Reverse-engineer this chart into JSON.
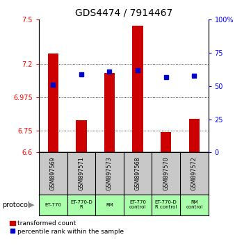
{
  "title": "GDS4474 / 7914467",
  "samples": [
    "GSM897569",
    "GSM897571",
    "GSM897573",
    "GSM897568",
    "GSM897570",
    "GSM897572"
  ],
  "red_values": [
    7.27,
    6.82,
    7.14,
    7.46,
    6.74,
    6.83
  ],
  "blue_values": [
    51,
    59,
    61,
    62,
    57,
    58
  ],
  "ylim_left": [
    6.6,
    7.5
  ],
  "ylim_right": [
    0,
    100
  ],
  "yticks_left": [
    6.6,
    6.75,
    6.975,
    7.2,
    7.5
  ],
  "yticks_right": [
    0,
    25,
    50,
    75,
    100
  ],
  "ytick_labels_left": [
    "6.6",
    "6.75",
    "6.975",
    "7.2",
    "7.5"
  ],
  "ytick_labels_right": [
    "0",
    "25",
    "50",
    "75",
    "100%"
  ],
  "hgrid_values": [
    6.75,
    6.975,
    7.2
  ],
  "protocols": [
    "ET-770",
    "ET-770-D\nR",
    "RM",
    "ET-770\ncontrol",
    "ET-770-D\nR control",
    "RM\ncontrol"
  ],
  "protocol_label": "protocol",
  "legend_red": "transformed count",
  "legend_blue": "percentile rank within the sample",
  "bar_color": "#cc0000",
  "dot_color": "#0000cc",
  "bg_sample": "#c8c8c8",
  "bg_protocol": "#aaffaa",
  "title_fontsize": 10,
  "axis_fontsize": 7,
  "tick_fontsize": 7
}
